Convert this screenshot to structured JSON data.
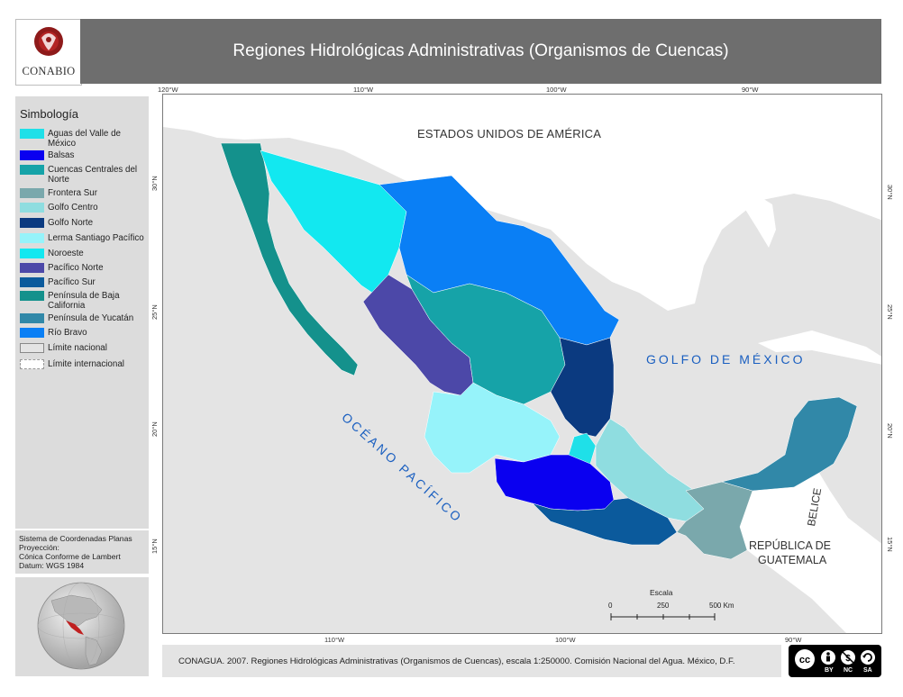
{
  "header": {
    "logo_text": "CONABIO",
    "title": "Regiones Hidrológicas Administrativas (Organismos de Cuencas)"
  },
  "legend": {
    "title": "Simbología",
    "items": [
      {
        "label": "Aguas del Valle de México",
        "color": "#1fe0e8"
      },
      {
        "label": "Balsas",
        "color": "#0a00f0"
      },
      {
        "label": "Cuencas Centrales del Norte",
        "color": "#16a3a8"
      },
      {
        "label": "Frontera Sur",
        "color": "#7aa8ac"
      },
      {
        "label": "Golfo Centro",
        "color": "#8fdde0"
      },
      {
        "label": "Golfo Norte",
        "color": "#0b3a80"
      },
      {
        "label": "Lerma Santiago Pacífico",
        "color": "#96f3fa"
      },
      {
        "label": "Noroeste",
        "color": "#12e8f0"
      },
      {
        "label": "Pacífico Norte",
        "color": "#4c48a8"
      },
      {
        "label": "Pacífico Sur",
        "color": "#0b5a9c"
      },
      {
        "label": "Península de Baja California",
        "color": "#14918c"
      },
      {
        "label": "Península de Yucatán",
        "color": "#3188a8"
      },
      {
        "label": "Río Bravo",
        "color": "#0a7ff5"
      },
      {
        "label": "Límite nacional",
        "color": "#e4e4e4"
      },
      {
        "label": "Límite internacional",
        "color": "#ffffff"
      }
    ]
  },
  "projection": {
    "line1": "Sistema de Coordenadas Planas",
    "line2": "Proyección:",
    "line3": "Cónica Conforme de Lambert",
    "line4": "Datum: WGS 1984"
  },
  "map": {
    "labels": {
      "usa": "ESTADOS UNIDOS DE AMÉRICA",
      "gulf": "GOLFO DE MÉXICO",
      "pacific": "OCÉANO PACÍFICO",
      "belize": "BELICE",
      "guatemala_1": "REPÚBLICA DE",
      "guatemala_2": "GUATEMALA"
    },
    "top_ticks": [
      "120°W",
      "110°W",
      "100°W",
      "90°W"
    ],
    "bottom_ticks": [
      "110°W",
      "100°W",
      "90°W"
    ],
    "left_ticks": [
      "30°N",
      "25°N",
      "20°N",
      "15°N"
    ],
    "right_ticks": [
      "30°N",
      "25°N",
      "20°N",
      "15°N"
    ],
    "scale": {
      "title": "Escala",
      "labels": [
        "0",
        "250",
        "500 Km"
      ]
    }
  },
  "footer": {
    "citation": "CONAGUA. 2007. Regiones Hidrológicas Administrativas (Organismos de Cuencas), escala 1:250000. Comisión Nacional del Agua. México, D.F."
  },
  "license": {
    "badges": [
      "BY",
      "NC",
      "SA"
    ],
    "icon": "creative-commons-icon"
  }
}
